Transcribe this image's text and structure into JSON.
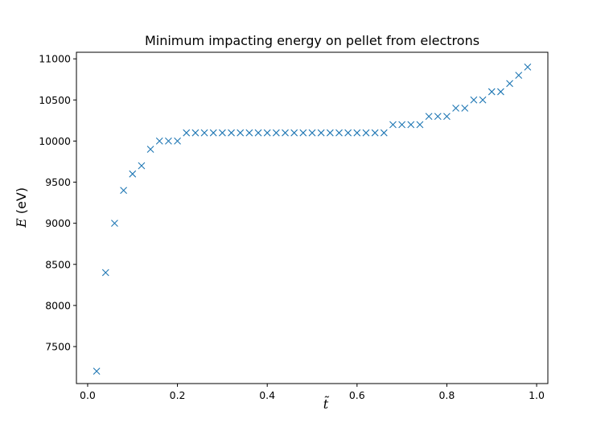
{
  "chart_data": {
    "type": "scatter",
    "title": "Minimum impacting energy on pellet from electrons",
    "xlabel": "t̃",
    "ylabel_symbol": "E",
    "ylabel_unit": " (eV)",
    "xlim": [
      -0.025,
      1.025
    ],
    "ylim": [
      7050,
      11080
    ],
    "xticks": [
      0.0,
      0.2,
      0.4,
      0.6,
      0.8,
      1.0
    ],
    "xtick_labels": [
      "0.0",
      "0.2",
      "0.4",
      "0.6",
      "0.8",
      "1.0"
    ],
    "yticks": [
      7500,
      8000,
      8500,
      9000,
      9500,
      10000,
      10500,
      11000
    ],
    "ytick_labels": [
      "7500",
      "8000",
      "8500",
      "9000",
      "9500",
      "10000",
      "10500",
      "11000"
    ],
    "marker": "x",
    "marker_color": "#1f77b4",
    "grid": false,
    "series": [
      {
        "x": [
          0.02,
          0.04,
          0.06,
          0.08,
          0.1,
          0.12,
          0.14,
          0.16,
          0.18,
          0.2,
          0.22,
          0.24,
          0.26,
          0.28,
          0.3,
          0.32,
          0.34,
          0.36,
          0.38,
          0.4,
          0.42,
          0.44,
          0.46,
          0.48,
          0.5,
          0.52,
          0.54,
          0.56,
          0.58,
          0.6,
          0.62,
          0.64,
          0.66,
          0.68,
          0.7,
          0.72,
          0.74,
          0.76,
          0.78,
          0.8,
          0.82,
          0.84,
          0.86,
          0.88,
          0.9,
          0.92,
          0.94,
          0.96,
          0.98
        ],
        "y": [
          7200,
          8400,
          9000,
          9400,
          9600,
          9700,
          9900,
          10000,
          10000,
          10000,
          10100,
          10100,
          10100,
          10100,
          10100,
          10100,
          10100,
          10100,
          10100,
          10100,
          10100,
          10100,
          10100,
          10100,
          10100,
          10100,
          10100,
          10100,
          10100,
          10100,
          10100,
          10100,
          10100,
          10200,
          10200,
          10200,
          10200,
          10300,
          10300,
          10300,
          10400,
          10400,
          10500,
          10500,
          10600,
          10600,
          10700,
          10800,
          10900
        ]
      }
    ]
  }
}
